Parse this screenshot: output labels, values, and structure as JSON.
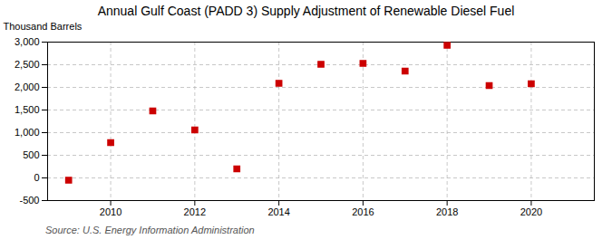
{
  "chart_data": {
    "type": "scatter",
    "title": "Annual Gulf Coast (PADD 3) Supply Adjustment of Renewable Diesel Fuel",
    "ylabel": "Thousand Barrels",
    "source": "Source: U.S. Energy Information Administration",
    "x": [
      2009,
      2010,
      2011,
      2012,
      2013,
      2014,
      2015,
      2016,
      2017,
      2018,
      2019,
      2020
    ],
    "values": [
      -50,
      780,
      1480,
      1060,
      200,
      2090,
      2510,
      2530,
      2360,
      2930,
      2040,
      2080
    ],
    "color": "#cc0000",
    "marker": "square",
    "xlim": [
      2008.5,
      2021.5
    ],
    "xticks": [
      2010,
      2012,
      2014,
      2016,
      2018,
      2020
    ],
    "ylim": [
      -500,
      3000
    ],
    "yticks": [
      -500,
      0,
      500,
      {
        "value": 1000,
        "label": "1,000"
      },
      {
        "value": 1500,
        "label": "1,500"
      },
      {
        "value": 2000,
        "label": "2,000"
      },
      {
        "value": 2500,
        "label": "2,500"
      },
      {
        "value": 3000,
        "label": "3,000"
      }
    ],
    "grid": true
  }
}
